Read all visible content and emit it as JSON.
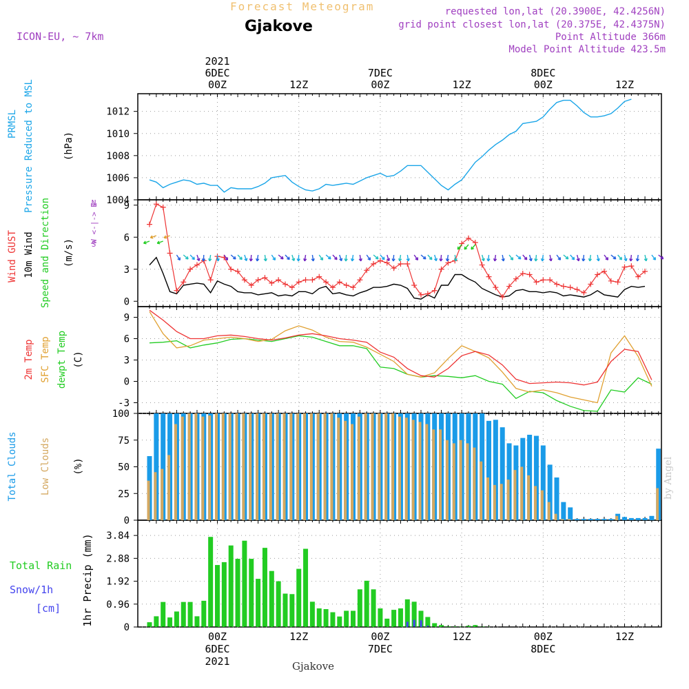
{
  "header": {
    "top_title": "Forecast Meteogram",
    "station": "Gjakove",
    "model": "ICON-EU, ~ 7km",
    "requested": "requested lon,lat (20.3900E, 42.4256N)",
    "grid_point": "grid point closest lon,lat (20.375E, 42.4375N)",
    "point_alt": "Point Altitude 366m",
    "model_alt": "Model Point Altitude 423.5m",
    "footer": "Gjakove",
    "credit": "by Angel"
  },
  "time_axis": {
    "top_labels": [
      {
        "h": 0,
        "lines": [
          "2021",
          "6DEC",
          "00Z"
        ]
      },
      {
        "h": 12,
        "lines": [
          "12Z"
        ]
      },
      {
        "h": 24,
        "lines": [
          "7DEC",
          "00Z"
        ]
      },
      {
        "h": 36,
        "lines": [
          "12Z"
        ]
      },
      {
        "h": 48,
        "lines": [
          "8DEC",
          "00Z"
        ]
      },
      {
        "h": 60,
        "lines": [
          "12Z"
        ]
      }
    ],
    "bottom_labels": [
      {
        "h": 0,
        "lines": [
          "00Z",
          "6DEC",
          "2021"
        ]
      },
      {
        "h": 12,
        "lines": [
          "12Z"
        ]
      },
      {
        "h": 24,
        "lines": [
          "00Z",
          "7DEC"
        ]
      },
      {
        "h": 36,
        "lines": [
          "12Z"
        ]
      },
      {
        "h": 48,
        "lines": [
          "00Z",
          "8DEC"
        ]
      },
      {
        "h": 60,
        "lines": [
          "12Z"
        ]
      }
    ]
  },
  "colors": {
    "pressure": "#1aa5e8",
    "gust": "#ee3333",
    "wind": "#000000",
    "green": "#22cc22",
    "sfc": "#e0a030",
    "total_clouds": "#1a9be8",
    "low_clouds": "#d4a860",
    "rain": "#22cc22",
    "snow": "#4444ee",
    "purple": "#a040c0"
  },
  "chart_data": [
    {
      "type": "line",
      "panel": "pressure",
      "title_lines": [
        "PRMSL",
        "Pressure Reduced to MSL"
      ],
      "ylabel": "(hPa)",
      "yticks": [
        1004,
        1006,
        1008,
        1010,
        1012
      ],
      "ylim": [
        1004,
        1013.6
      ],
      "x_hours": [
        -10,
        -9,
        -8,
        -7,
        -6,
        -5,
        -4,
        -3,
        -2,
        -1,
        0,
        1,
        2,
        3,
        4,
        5,
        6,
        7,
        8,
        9,
        10,
        11,
        12,
        13,
        14,
        15,
        16,
        17,
        18,
        19,
        20,
        21,
        22,
        23,
        24,
        25,
        26,
        27,
        28,
        29,
        30,
        31,
        32,
        33,
        34,
        35,
        36,
        37,
        38,
        39,
        40,
        41,
        42,
        43,
        44,
        45,
        46,
        47,
        48,
        49,
        50,
        51,
        52,
        53,
        54,
        55,
        56,
        57,
        58,
        59,
        60,
        61,
        62,
        63,
        64,
        65
      ],
      "series": [
        {
          "values": [
            1005.8,
            1005.6,
            1005.1,
            1005.4,
            1005.6,
            1005.8,
            1005.7,
            1005.4,
            1005.5,
            1005.3,
            1005.3,
            1004.7,
            1005.1,
            1005.0,
            1005.0,
            1005.0,
            1005.2,
            1005.5,
            1006.0,
            1006.1,
            1006.2,
            1005.6,
            1005.2,
            1004.9,
            1004.8,
            1005.0,
            1005.4,
            1005.3,
            1005.4,
            1005.5,
            1005.4,
            1005.7,
            1006.0,
            1006.2,
            1006.4,
            1006.1,
            1006.2,
            1006.6,
            1007.1,
            1007.1,
            1007.1,
            1006.5,
            1005.9,
            1005.3,
            1004.9,
            1005.4,
            1005.8,
            1006.6,
            1007.4,
            1007.9,
            1008.5,
            1009.0,
            1009.4,
            1009.9,
            1010.2,
            1010.9,
            1011.0,
            1011.1,
            1011.5,
            1012.2,
            1012.8,
            1013.0,
            1013.0,
            1012.5,
            1011.9,
            1011.5,
            1011.5,
            1011.6,
            1011.8,
            1012.3,
            1012.9,
            1013.1
          ]
        }
      ]
    },
    {
      "type": "line",
      "panel": "wind",
      "title_lines": [
        "Wind GUST",
        "10m Wind",
        "Speed and Direction"
      ],
      "ylabel": "(m/s)",
      "yticks": [
        0,
        3,
        6,
        9
      ],
      "ylim": [
        -0.5,
        9.5
      ],
      "compass": [
        "N",
        "W <-|-> E",
        "S"
      ],
      "x_hours": [
        -10,
        -9,
        -8,
        -7,
        -6,
        -5,
        -4,
        -3,
        -2,
        -1,
        0,
        1,
        2,
        3,
        4,
        5,
        6,
        7,
        8,
        9,
        10,
        11,
        12,
        13,
        14,
        15,
        16,
        17,
        18,
        19,
        20,
        21,
        22,
        23,
        24,
        25,
        26,
        27,
        28,
        29,
        30,
        31,
        32,
        33,
        34,
        35,
        36,
        37,
        38,
        39,
        40,
        41,
        42,
        43,
        44,
        45,
        46,
        47,
        48,
        49,
        50,
        51,
        52,
        53,
        54,
        55,
        56,
        57,
        58,
        59,
        60,
        61,
        62,
        63,
        64,
        65
      ],
      "series": [
        {
          "name": "Wind GUST",
          "values": [
            7.2,
            9.1,
            8.8,
            4.5,
            1.0,
            1.8,
            3.0,
            3.4,
            3.8,
            2.0,
            4.2,
            4.1,
            3.0,
            2.8,
            2.0,
            1.5,
            2.0,
            2.2,
            1.7,
            2.0,
            1.6,
            1.3,
            1.8,
            2.0,
            2.0,
            2.3,
            1.8,
            1.3,
            1.8,
            1.5,
            1.3,
            2.0,
            2.9,
            3.5,
            3.8,
            3.6,
            3.1,
            3.5,
            3.5,
            1.5,
            0.6,
            0.7,
            1.0,
            3.0,
            3.6,
            3.8,
            5.4,
            5.9,
            5.5,
            3.4,
            2.3,
            1.3,
            0.4,
            1.4,
            2.1,
            2.6,
            2.5,
            1.8,
            2.0,
            2.0,
            1.6,
            1.4,
            1.3,
            1.1,
            0.8,
            1.6,
            2.5,
            2.8,
            1.9,
            1.8,
            3.2,
            3.3,
            2.3,
            2.8
          ]
        },
        {
          "name": "10m Wind",
          "values": [
            3.4,
            4.1,
            2.6,
            0.9,
            0.7,
            1.5,
            1.6,
            1.7,
            1.6,
            0.8,
            1.9,
            1.6,
            1.4,
            0.9,
            0.8,
            0.8,
            0.6,
            0.7,
            0.8,
            0.5,
            0.6,
            0.5,
            0.9,
            0.9,
            0.7,
            1.2,
            1.4,
            0.7,
            0.8,
            0.6,
            0.5,
            0.8,
            1.0,
            1.3,
            1.3,
            1.4,
            1.6,
            1.5,
            1.2,
            0.3,
            0.2,
            0.6,
            0.3,
            1.5,
            1.5,
            2.5,
            2.5,
            2.1,
            1.8,
            1.2,
            0.9,
            0.6,
            0.4,
            0.5,
            1.0,
            1.1,
            0.9,
            0.9,
            0.8,
            0.9,
            0.8,
            0.5,
            0.6,
            0.5,
            0.4,
            0.6,
            1.0,
            0.6,
            0.5,
            0.4,
            1.1,
            1.4,
            1.3,
            1.4
          ]
        }
      ]
    },
    {
      "type": "line",
      "panel": "temperature",
      "title_lines": [
        "2m Temp",
        "SFC Temp",
        "dewpt Temp"
      ],
      "ylabel": "(C)",
      "yticks": [
        -3,
        0,
        3,
        6,
        9
      ],
      "ylim": [
        -4.5,
        10.5
      ],
      "x_hours": [
        -10,
        -8,
        -6,
        -4,
        -2,
        0,
        2,
        4,
        6,
        8,
        10,
        12,
        14,
        16,
        18,
        20,
        22,
        24,
        26,
        28,
        30,
        32,
        34,
        36,
        38,
        40,
        42,
        44,
        46,
        48,
        50,
        52,
        54,
        56,
        58,
        60,
        62,
        64
      ],
      "series": [
        {
          "name": "2m Temp",
          "values": [
            10.0,
            8.6,
            7.0,
            6.0,
            6.0,
            6.4,
            6.5,
            6.3,
            6.0,
            5.8,
            6.1,
            6.5,
            6.7,
            6.4,
            6.0,
            5.8,
            5.5,
            4.1,
            3.4,
            1.8,
            0.8,
            0.6,
            1.8,
            3.6,
            4.2,
            3.7,
            2.3,
            0.3,
            -0.3,
            -0.2,
            -0.1,
            -0.2,
            -0.5,
            -0.1,
            2.8,
            4.5,
            4.2,
            0.2
          ]
        },
        {
          "name": "SFC Temp",
          "values": [
            9.8,
            6.7,
            4.7,
            5.0,
            5.8,
            6.0,
            6.2,
            6.0,
            5.6,
            5.9,
            7.1,
            7.8,
            7.2,
            6.2,
            5.6,
            5.5,
            4.8,
            3.8,
            2.8,
            1.0,
            0.6,
            1.2,
            3.2,
            5.0,
            4.2,
            3.3,
            1.3,
            -1.0,
            -1.5,
            -1.2,
            -1.6,
            -2.2,
            -2.6,
            -3.0,
            4.0,
            6.4,
            3.5,
            -0.7
          ]
        },
        {
          "name": "dewpt Temp",
          "values": [
            5.4,
            5.5,
            5.7,
            4.7,
            5.1,
            5.4,
            5.9,
            6.0,
            5.8,
            5.6,
            6.0,
            6.4,
            6.2,
            5.6,
            5.0,
            5.0,
            4.6,
            2.0,
            1.8,
            1.0,
            0.6,
            0.8,
            0.7,
            0.5,
            0.8,
            0.0,
            -0.4,
            -2.4,
            -1.4,
            -1.6,
            -2.7,
            -3.5,
            -4.1,
            -4.2,
            -1.2,
            -1.5,
            0.5,
            -0.4
          ]
        }
      ]
    },
    {
      "type": "bar",
      "panel": "clouds",
      "title_lines": [
        "Total Clouds",
        "Low Clouds"
      ],
      "ylabel": "(%)",
      "yticks": [
        0,
        25,
        50,
        75,
        100
      ],
      "ylim": [
        0,
        100
      ],
      "x_hours": [
        -10,
        -9,
        -8,
        -7,
        -6,
        -5,
        -4,
        -3,
        -2,
        -1,
        0,
        1,
        2,
        3,
        4,
        5,
        6,
        7,
        8,
        9,
        10,
        11,
        12,
        13,
        14,
        15,
        16,
        17,
        18,
        19,
        20,
        21,
        22,
        23,
        24,
        25,
        26,
        27,
        28,
        29,
        30,
        31,
        32,
        33,
        34,
        35,
        36,
        37,
        38,
        39,
        40,
        41,
        42,
        43,
        44,
        45,
        46,
        47,
        48,
        49,
        50,
        51,
        52,
        53,
        54,
        55,
        56,
        57,
        58,
        59,
        60,
        61,
        62,
        63,
        64,
        65
      ],
      "series": [
        {
          "name": "Total Clouds",
          "values": [
            60,
            100,
            100,
            100,
            100,
            100,
            100,
            100,
            100,
            100,
            100,
            100,
            100,
            100,
            100,
            100,
            100,
            100,
            100,
            100,
            100,
            100,
            100,
            100,
            100,
            100,
            100,
            100,
            100,
            100,
            100,
            100,
            100,
            100,
            100,
            100,
            100,
            100,
            100,
            100,
            100,
            100,
            100,
            100,
            100,
            100,
            100,
            100,
            100,
            100,
            93,
            94,
            87,
            72,
            70,
            77,
            80,
            79,
            70,
            52,
            40,
            17,
            12,
            1,
            1,
            1,
            1,
            1,
            1,
            6,
            3,
            2,
            2,
            2,
            4,
            67
          ]
        },
        {
          "name": "Low Clouds",
          "values": [
            37,
            45,
            48,
            61,
            90,
            97,
            100,
            100,
            97,
            98,
            100,
            100,
            100,
            100,
            100,
            100,
            100,
            100,
            100,
            100,
            100,
            100,
            100,
            100,
            100,
            100,
            100,
            100,
            96,
            93,
            90,
            97,
            100,
            100,
            100,
            100,
            100,
            97,
            96,
            94,
            92,
            90,
            85,
            85,
            75,
            72,
            75,
            72,
            68,
            55,
            40,
            33,
            34,
            38,
            47,
            50,
            42,
            32,
            28,
            17,
            6,
            1,
            1,
            0,
            0,
            0,
            0,
            0,
            0,
            4,
            0,
            0,
            0,
            0,
            0,
            30
          ]
        }
      ]
    },
    {
      "type": "bar",
      "panel": "precip",
      "title_lines": [
        "Total  Rain",
        "Snow/1h",
        "[cm]"
      ],
      "ylabel": "1hr Precip (mm)",
      "yticks": [
        0,
        0.96,
        1.92,
        2.88,
        3.84
      ],
      "ytick_labels": [
        "0",
        "0.96",
        "1.92",
        "2.88",
        "3.84"
      ],
      "ylim": [
        0,
        4.48
      ],
      "x_hours": [
        -10,
        -9,
        -8,
        -7,
        -6,
        -5,
        -4,
        -3,
        -2,
        -1,
        0,
        1,
        2,
        3,
        4,
        5,
        6,
        7,
        8,
        9,
        10,
        11,
        12,
        13,
        14,
        15,
        16,
        17,
        18,
        19,
        20,
        21,
        22,
        23,
        24,
        25,
        26,
        27,
        28,
        29,
        30,
        31,
        32,
        33,
        34,
        35,
        36,
        37,
        38,
        39,
        40,
        41,
        42,
        43,
        44,
        45,
        46,
        47,
        48,
        49,
        50,
        51,
        52,
        53,
        54,
        55,
        56,
        57,
        58,
        59,
        60,
        61,
        62,
        63,
        64,
        65
      ],
      "series": [
        {
          "name": "Total Rain",
          "values": [
            0.2,
            0.45,
            1.05,
            0.4,
            0.65,
            1.05,
            1.05,
            0.45,
            1.1,
            3.78,
            2.6,
            2.72,
            3.42,
            2.86,
            3.62,
            2.86,
            2.02,
            3.32,
            2.35,
            1.92,
            1.4,
            1.38,
            2.44,
            3.28,
            1.06,
            0.78,
            0.75,
            0.62,
            0.44,
            0.68,
            0.68,
            1.58,
            1.94,
            1.58,
            0.78,
            0.35,
            0.72,
            0.78,
            1.16,
            1.06,
            0.68,
            0.42,
            0.16,
            0.08,
            0.03,
            0.02,
            0.02,
            0.05,
            0.08,
            0.02,
            0.01,
            0,
            0,
            0,
            0,
            0,
            0,
            0,
            0,
            0,
            0,
            0,
            0,
            0,
            0,
            0,
            0,
            0,
            0,
            0,
            0,
            0,
            0,
            0,
            0,
            0
          ]
        },
        {
          "name": "Snow/1h",
          "values": [
            0,
            0,
            0,
            0,
            0,
            0,
            0,
            0,
            0,
            0,
            0,
            0,
            0,
            0,
            0,
            0,
            0,
            0,
            0,
            0,
            0,
            0,
            0,
            0,
            0,
            0,
            0,
            0,
            0,
            0,
            0,
            0,
            0,
            0,
            0,
            0,
            0,
            0,
            0.22,
            0.3,
            0.28,
            0.06,
            0,
            0,
            0,
            0,
            0,
            0,
            0,
            0,
            0,
            0,
            0,
            0,
            0,
            0,
            0,
            0,
            0,
            0,
            0,
            0,
            0,
            0,
            0,
            0,
            0,
            0,
            0,
            0,
            0,
            0,
            0,
            0,
            0,
            0
          ]
        }
      ]
    }
  ]
}
